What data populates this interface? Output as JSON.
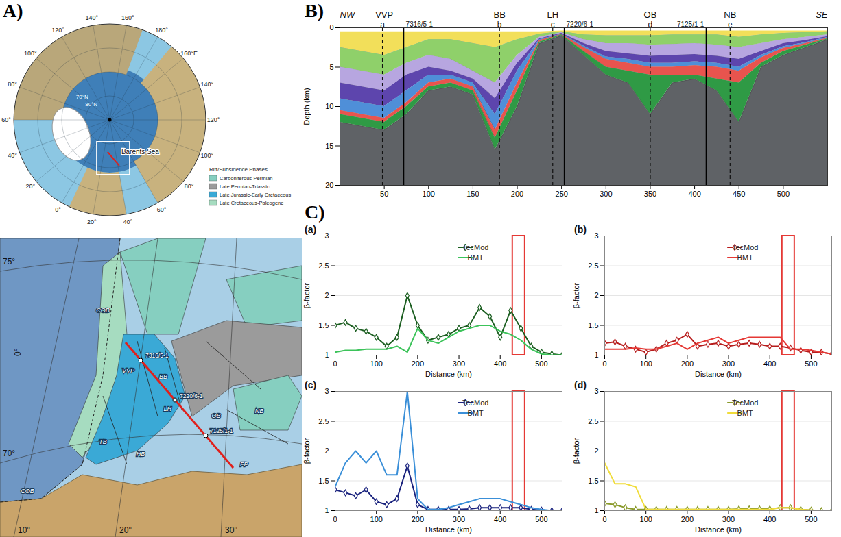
{
  "panel_labels": [
    "A)",
    "B)",
    "C)"
  ],
  "overview_map": {
    "meridian_labels": [
      "0°",
      "20°",
      "40°",
      "60°",
      "80°",
      "100°",
      "120°",
      "140°",
      "160°E",
      "180°",
      "160°",
      "140°",
      "120°",
      "100°",
      "80°",
      "60°",
      "40°",
      "20°"
    ],
    "latitude_labels": [
      "80°N",
      "70°N"
    ],
    "region_label": "Barents Sea",
    "legend": {
      "title": "Rift/Subsidence Phases",
      "entries": [
        {
          "label": "Carboniferous-Permian",
          "color": "#86cfc0"
        },
        {
          "label": "Late Permian-Triassic",
          "color": "#9b9b9b"
        },
        {
          "label": "Late Jurassic-Early Cretaceous",
          "color": "#3aa9d6"
        },
        {
          "label": "Late Cretaceous-Paleogene",
          "color": "#a6dcc0"
        }
      ]
    }
  },
  "detail_map": {
    "grid_labels": [
      "75°",
      "0°",
      "70°",
      "10°",
      "20°",
      "30°"
    ],
    "labels": [
      "COB",
      "COB",
      "VVP",
      "BB",
      "LH",
      "OB",
      "NB",
      "TB",
      "HB",
      "FP"
    ],
    "wells": [
      "7316/5-1",
      "7220/6-1",
      "7125/1-1"
    ]
  },
  "chart_data": [
    {
      "type": "area",
      "ylabel": "Depth (km)",
      "xlim": [
        0,
        550
      ],
      "xticks": [
        50,
        100,
        150,
        200,
        250,
        300,
        350,
        400,
        450,
        500
      ],
      "ylim": [
        0,
        20
      ],
      "yticks": [
        0,
        5,
        10,
        15,
        20
      ],
      "x": [
        0,
        25,
        50,
        75,
        100,
        125,
        150,
        175,
        200,
        225,
        250,
        275,
        300,
        325,
        350,
        375,
        400,
        425,
        450,
        475,
        500,
        525,
        550
      ],
      "layers": [
        {
          "color": "#f2df5a",
          "top": [
            0.5,
            0.5,
            0.5,
            0.5,
            0.5,
            0.5,
            0.5,
            0.5,
            0.5,
            0.5,
            0.4,
            0.4,
            0.4,
            0.4,
            0.4,
            0.4,
            0.4,
            0.4,
            0.4,
            0.4,
            0.4,
            0.4,
            0.4
          ],
          "base": [
            2.5,
            3,
            3.5,
            2.5,
            1.5,
            1.5,
            2,
            2.5,
            1.5,
            0.8,
            0.5,
            0.9,
            1,
            1,
            1,
            0.9,
            0.9,
            0.9,
            1.2,
            0.9,
            0.7,
            0.6,
            0.5
          ]
        },
        {
          "color": "#8fd06a",
          "top": [
            2.5,
            3,
            3.5,
            2.5,
            1.5,
            1.5,
            2,
            2.5,
            1.5,
            0.8,
            0.5,
            0.9,
            1,
            1,
            1,
            0.9,
            0.9,
            0.9,
            1.2,
            0.9,
            0.7,
            0.6,
            0.5
          ],
          "base": [
            5,
            5.5,
            6,
            4.5,
            3.5,
            4,
            5.5,
            7,
            3.5,
            1.2,
            0.6,
            1.5,
            2,
            2,
            2.2,
            2.1,
            2,
            2.2,
            2.5,
            2,
            1.5,
            1.2,
            0.9
          ]
        },
        {
          "color": "#b7a6e0",
          "top": [
            5,
            5.5,
            6,
            4.5,
            3.5,
            4,
            5.5,
            7,
            3.5,
            1.2,
            0.6,
            1.5,
            2,
            2,
            2.2,
            2.1,
            2,
            2.2,
            2.5,
            2,
            1.5,
            1.2,
            0.9
          ],
          "base": [
            7,
            7.5,
            8,
            6,
            5,
            5.5,
            6.5,
            9,
            4.5,
            1.4,
            0.7,
            2,
            3,
            3.3,
            3.6,
            3.5,
            3.4,
            3.6,
            4,
            3,
            2,
            1.6,
            1.1
          ]
        },
        {
          "color": "#5d45ad",
          "top": [
            7,
            7.5,
            8,
            6,
            5,
            5.5,
            6.5,
            9,
            4.5,
            1.4,
            0.7,
            2,
            3,
            3.3,
            3.6,
            3.5,
            3.4,
            3.6,
            4,
            3,
            2,
            1.6,
            1.1
          ],
          "base": [
            9,
            9.5,
            10,
            8,
            6,
            6,
            7,
            11,
            5.5,
            1.5,
            0.8,
            2.3,
            3.7,
            4,
            4.5,
            4.5,
            4.3,
            4.5,
            5,
            3.5,
            2.4,
            1.9,
            1.2
          ]
        },
        {
          "color": "#4f8fd8",
          "top": [
            9,
            9.5,
            10,
            8,
            6,
            6,
            7,
            11,
            5.5,
            1.5,
            0.8,
            2.3,
            3.7,
            4,
            4.5,
            4.5,
            4.3,
            4.5,
            5,
            3.5,
            2.4,
            1.9,
            1.2
          ],
          "base": [
            10.5,
            11,
            11.5,
            9.5,
            7,
            6.5,
            7.5,
            13,
            7,
            1.6,
            0.85,
            2.5,
            4,
            4.5,
            5,
            5,
            4.8,
            5,
            5.5,
            3.8,
            2.6,
            2,
            1.3
          ]
        },
        {
          "color": "#e8544e",
          "top": [
            10.5,
            11,
            11.5,
            9.5,
            7,
            6.5,
            7.5,
            13,
            7,
            1.6,
            0.85,
            2.5,
            4,
            4.5,
            5,
            5,
            4.8,
            5,
            5.5,
            3.8,
            2.6,
            2,
            1.3
          ],
          "base": [
            11,
            11.5,
            12,
            10,
            7.5,
            7,
            8,
            14,
            8,
            1.8,
            0.9,
            3,
            5,
            5.5,
            6,
            6,
            6,
            6.5,
            7,
            4.5,
            3,
            2.2,
            1.4
          ]
        },
        {
          "color": "#2f9a45",
          "top": [
            11,
            11.5,
            12,
            10,
            7.5,
            7,
            8,
            14,
            8,
            1.8,
            0.9,
            3,
            5,
            5.5,
            6,
            6,
            6,
            6.5,
            7,
            4.5,
            3,
            2.2,
            1.4
          ],
          "base": [
            12,
            12.5,
            13,
            11,
            8,
            7.5,
            8.5,
            15.5,
            10,
            2,
            1,
            3.5,
            6,
            7,
            11,
            7,
            6.5,
            8,
            12,
            5,
            3.5,
            2.5,
            1.5
          ]
        }
      ],
      "basement": {
        "color": "#5f6266",
        "top": [
          12,
          12.5,
          13,
          11,
          8,
          7.5,
          8.5,
          15.5,
          10,
          2,
          1,
          3.5,
          6,
          7,
          11,
          7,
          6.5,
          8,
          12,
          5,
          3.5,
          2.5,
          1.5
        ]
      },
      "regions": [
        {
          "label": "NW",
          "x": 0
        },
        {
          "label": "VVP",
          "x": 50
        },
        {
          "label": "BB",
          "x": 180
        },
        {
          "label": "LH",
          "x": 240
        },
        {
          "label": "OB",
          "x": 350
        },
        {
          "label": "NB",
          "x": 440
        },
        {
          "label": "SE",
          "x": 550
        }
      ],
      "sections": [
        {
          "label": "a",
          "x": 48
        },
        {
          "label": "b",
          "x": 180
        },
        {
          "label": "c",
          "x": 240
        },
        {
          "label": "d",
          "x": 350
        },
        {
          "label": "e",
          "x": 440
        }
      ],
      "wells": [
        {
          "label": "7316/5-1",
          "x": 72
        },
        {
          "label": "7220/6-1",
          "x": 253
        },
        {
          "label": "7125/1-1",
          "x": 413
        }
      ]
    },
    {
      "type": "line",
      "title": "(a)",
      "xlabel": "Distance (km)",
      "ylabel": "β-factor",
      "xlim": [
        0,
        550
      ],
      "xticks": [
        0,
        100,
        200,
        300,
        400,
        500
      ],
      "ylim": [
        1,
        3
      ],
      "yticks": [
        1,
        1.5,
        2,
        2.5,
        3
      ],
      "grid": true,
      "legend": "top right",
      "highlight": [
        430,
        460
      ],
      "x": [
        0,
        25,
        50,
        75,
        100,
        125,
        150,
        175,
        200,
        225,
        250,
        275,
        300,
        325,
        350,
        375,
        400,
        425,
        450,
        475,
        500,
        525,
        550
      ],
      "series": [
        {
          "name": "TecMod",
          "color": "#1b5e20",
          "marker": "diamond",
          "values": [
            1.5,
            1.55,
            1.45,
            1.4,
            1.3,
            1.15,
            1.3,
            2.0,
            1.5,
            1.25,
            1.3,
            1.35,
            1.45,
            1.5,
            1.8,
            1.65,
            1.3,
            1.75,
            1.45,
            1.15,
            1.05,
            1.02,
            1.0
          ]
        },
        {
          "name": "BMT",
          "color": "#3cc35a",
          "values": [
            1.05,
            1.08,
            1.08,
            1.1,
            1.1,
            1.1,
            1.15,
            1.05,
            1.45,
            1.25,
            1.2,
            1.3,
            1.4,
            1.45,
            1.5,
            1.5,
            1.4,
            1.35,
            1.25,
            1.1,
            1.02,
            1.0,
            1.0
          ]
        }
      ]
    },
    {
      "type": "line",
      "title": "(b)",
      "xlabel": "Distance (km)",
      "ylabel": "β-factor",
      "xlim": [
        0,
        550
      ],
      "xticks": [
        0,
        100,
        200,
        300,
        400,
        500
      ],
      "ylim": [
        1,
        3
      ],
      "yticks": [
        1,
        1.5,
        2,
        2.5,
        3
      ],
      "grid": true,
      "legend": "top right",
      "highlight": [
        430,
        460
      ],
      "x": [
        0,
        25,
        50,
        75,
        100,
        125,
        150,
        175,
        200,
        225,
        250,
        275,
        300,
        325,
        350,
        375,
        400,
        425,
        450,
        475,
        500,
        525,
        550
      ],
      "series": [
        {
          "name": "TecMod",
          "color": "#b71c1c",
          "marker": "diamond",
          "values": [
            1.2,
            1.22,
            1.15,
            1.1,
            1.05,
            1.1,
            1.2,
            1.25,
            1.35,
            1.15,
            1.18,
            1.2,
            1.15,
            1.18,
            1.2,
            1.18,
            1.15,
            1.15,
            1.12,
            1.08,
            1.05,
            1.05,
            1.02
          ]
        },
        {
          "name": "BMT",
          "color": "#e53935",
          "values": [
            1.1,
            1.1,
            1.1,
            1.12,
            1.1,
            1.1,
            1.15,
            1.2,
            1.1,
            1.2,
            1.25,
            1.3,
            1.2,
            1.25,
            1.3,
            1.3,
            1.3,
            1.3,
            1.1,
            1.1,
            1.08,
            1.05,
            1.02
          ]
        }
      ]
    },
    {
      "type": "line",
      "title": "(c)",
      "xlabel": "Distance (km)",
      "ylabel": "β-factor",
      "xlim": [
        0,
        550
      ],
      "xticks": [
        0,
        100,
        200,
        300,
        400,
        500
      ],
      "ylim": [
        1,
        3
      ],
      "yticks": [
        1,
        1.5,
        2,
        2.5,
        3
      ],
      "grid": true,
      "legend": "top right",
      "highlight": [
        430,
        460
      ],
      "x": [
        0,
        25,
        50,
        75,
        100,
        125,
        150,
        175,
        200,
        225,
        250,
        275,
        300,
        325,
        350,
        375,
        400,
        425,
        450,
        475,
        500,
        525,
        550
      ],
      "series": [
        {
          "name": "TecMod",
          "color": "#1a237e",
          "marker": "diamond",
          "values": [
            1.35,
            1.3,
            1.25,
            1.35,
            1.15,
            1.1,
            1.2,
            1.75,
            1.1,
            1.02,
            1.02,
            1.02,
            1.02,
            1.03,
            1.05,
            1.05,
            1.05,
            1.05,
            1.05,
            1.02,
            1.01,
            1.0,
            1.0
          ]
        },
        {
          "name": "BMT",
          "color": "#3a8fd8",
          "values": [
            1.4,
            1.8,
            2.0,
            1.8,
            2.0,
            1.6,
            1.6,
            3.0,
            1.2,
            1.02,
            1.02,
            1.05,
            1.1,
            1.15,
            1.2,
            1.2,
            1.2,
            1.15,
            1.1,
            1.05,
            1.02,
            1.0,
            1.0
          ]
        }
      ]
    },
    {
      "type": "line",
      "title": "(d)",
      "xlabel": "Distance (km)",
      "ylabel": "β-factor",
      "xlim": [
        0,
        550
      ],
      "xticks": [
        0,
        100,
        200,
        300,
        400,
        500
      ],
      "ylim": [
        1,
        3
      ],
      "yticks": [
        1,
        1.5,
        2,
        2.5,
        3
      ],
      "grid": true,
      "legend": "top right",
      "highlight": [
        430,
        460
      ],
      "x": [
        0,
        25,
        50,
        75,
        100,
        125,
        150,
        175,
        200,
        225,
        250,
        275,
        300,
        325,
        350,
        375,
        400,
        425,
        450,
        475,
        500,
        525,
        550
      ],
      "series": [
        {
          "name": "TecMod",
          "color": "#8a9a2b",
          "marker": "diamond",
          "values": [
            1.12,
            1.1,
            1.05,
            1.02,
            1.02,
            1.02,
            1.02,
            1.02,
            1.02,
            1.02,
            1.02,
            1.02,
            1.02,
            1.03,
            1.03,
            1.03,
            1.03,
            1.05,
            1.05,
            1.02,
            1.01,
            1.0,
            1.0
          ]
        },
        {
          "name": "BMT",
          "color": "#f0dc3a",
          "values": [
            1.8,
            1.45,
            1.45,
            1.4,
            1.02,
            1.02,
            1.02,
            1.02,
            1.02,
            1.02,
            1.02,
            1.02,
            1.02,
            1.02,
            1.02,
            1.02,
            1.02,
            1.05,
            1.05,
            1.02,
            1.01,
            1.0,
            1.0
          ]
        }
      ]
    }
  ]
}
